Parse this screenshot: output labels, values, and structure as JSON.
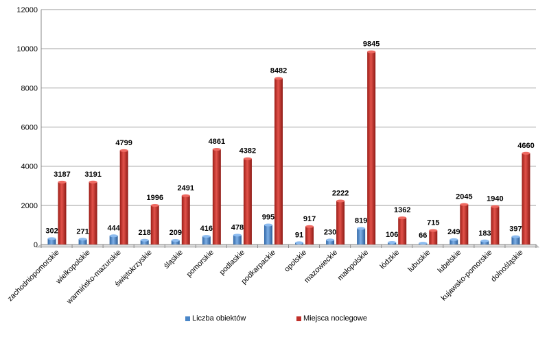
{
  "chart_data": {
    "type": "bar",
    "categories": [
      "zachodniopomorskie",
      "wielkopolskie",
      "warmińsko-mazurskie",
      "świętokrzyskie",
      "śląskie",
      "pomorskie",
      "podlaskie",
      "podkarpackie",
      "opolskie",
      "mazowieckie",
      "małopolskie",
      "łódzkie",
      "lubuskie",
      "lubelskie",
      "kujawsko-pomorskie",
      "dolnośląskie"
    ],
    "series": [
      {
        "name": "Liczba obiektów",
        "color": "#4a86c8",
        "values": [
          302,
          271,
          444,
          218,
          209,
          416,
          478,
          995,
          91,
          230,
          819,
          106,
          66,
          249,
          183,
          397
        ]
      },
      {
        "name": "Miejsca noclegowe",
        "color": "#c0302a",
        "values": [
          3187,
          3191,
          4799,
          1996,
          2491,
          4861,
          4382,
          8482,
          917,
          2222,
          9845,
          1362,
          715,
          2045,
          1940,
          4660
        ]
      }
    ],
    "ylim": [
      0,
      12000
    ],
    "yticks": [
      0,
      2000,
      4000,
      6000,
      8000,
      10000,
      12000
    ],
    "grid": true,
    "legend_position": "bottom",
    "title": "",
    "xlabel": "",
    "ylabel": ""
  }
}
